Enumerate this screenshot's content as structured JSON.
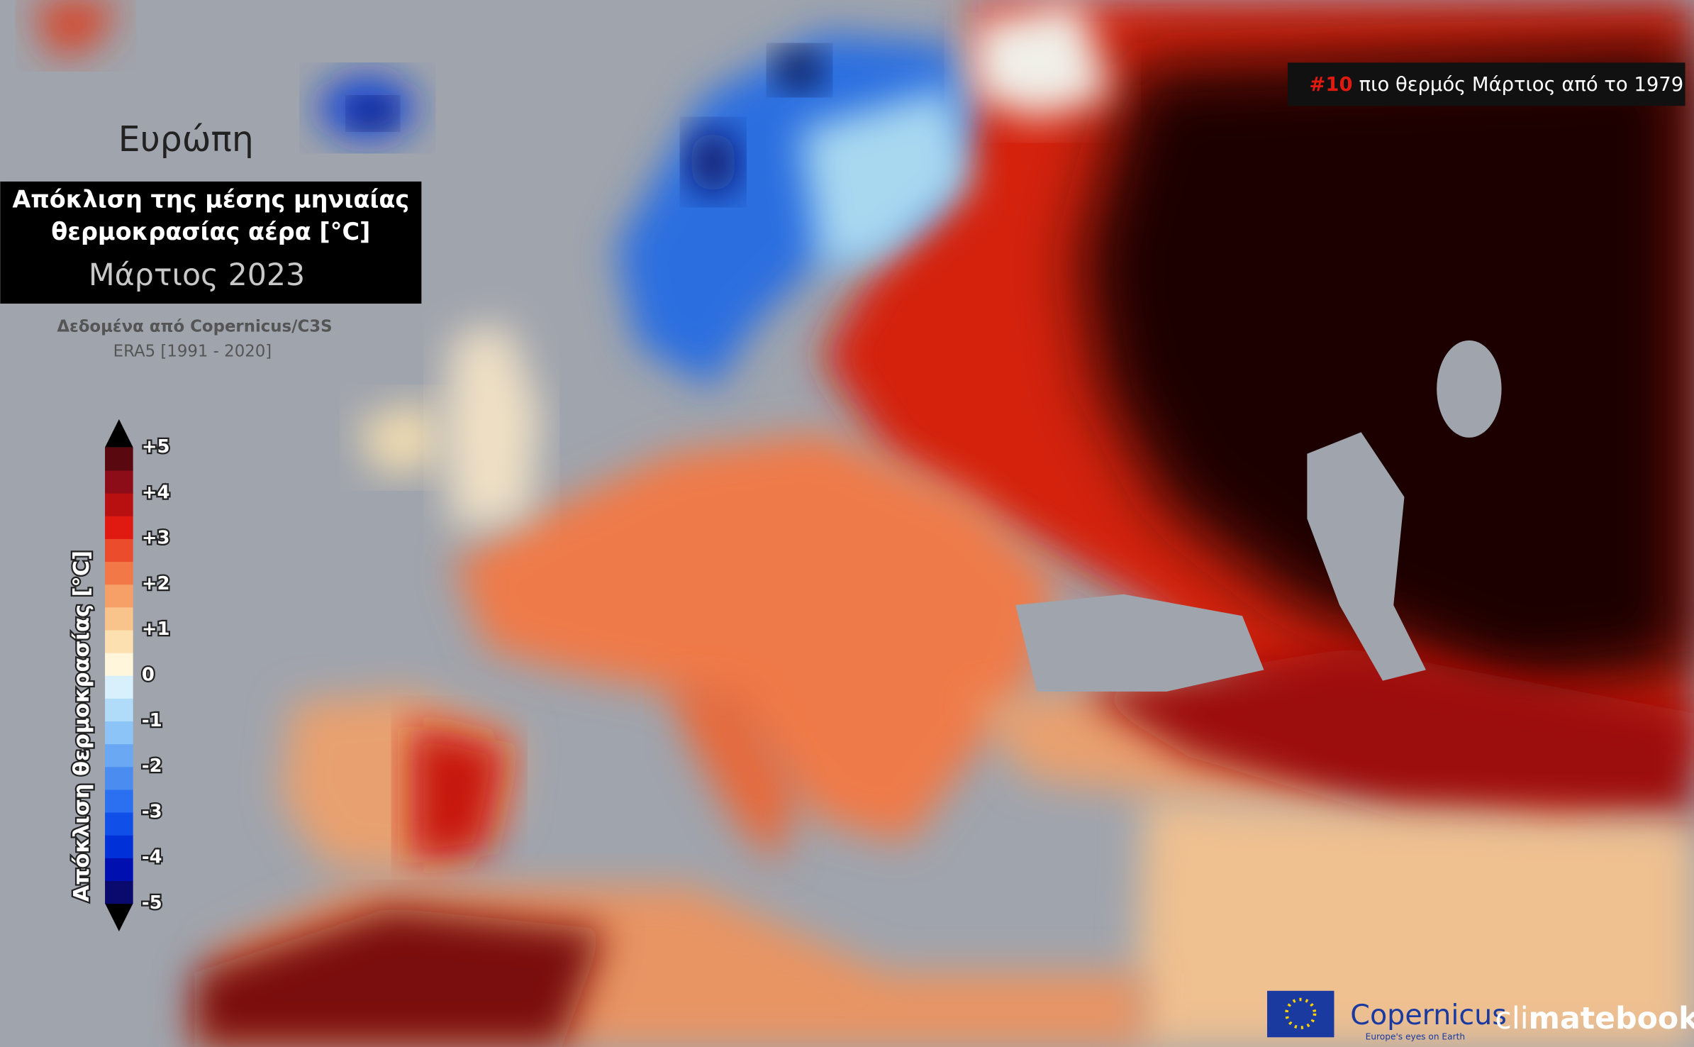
{
  "map": {
    "region": "Ευρώπη",
    "heading": [
      "Απόκλιση της μέσης μηνιαίας",
      "θερμοκρασίας αέρα [°C]"
    ],
    "period": "Μάρτιος 2023",
    "source": "Δεδομένα από Copernicus/C3S",
    "reference": "ERA5 [1991 - 2020]",
    "rank": {
      "number": "#10",
      "text": "πιο θερμός Μάρτιος από το 1979"
    }
  },
  "legend": {
    "title": "Απόκλιση θερμοκρασίας [°C]",
    "range": [
      -5,
      5
    ],
    "colors": [
      "#0a0a6e",
      "#0010b0",
      "#0030d8",
      "#1050e8",
      "#2a70f0",
      "#4a8cf0",
      "#6aa8f4",
      "#8cc4f8",
      "#b0dcfa",
      "#d8f0fc",
      "#fff6dc",
      "#fde0b0",
      "#f9c48c",
      "#f6a068",
      "#f27848",
      "#ea4c2c",
      "#e01a10",
      "#b81010",
      "#8c0c18",
      "#5a0810"
    ],
    "ticks": [
      {
        "value": 5,
        "label": "+5"
      },
      {
        "value": 4,
        "label": "+4"
      },
      {
        "value": 3,
        "label": "+3"
      },
      {
        "value": 2,
        "label": "+2"
      },
      {
        "value": 1,
        "label": "+1"
      },
      0,
      -1,
      -2,
      -3,
      -4,
      -5
    ]
  },
  "logos": {
    "copernicus": "Copernicus",
    "copernicus_tagline": "Europe's eyes on Earth",
    "climatebook_light": "cli",
    "climatebook_bold": "matebook"
  }
}
